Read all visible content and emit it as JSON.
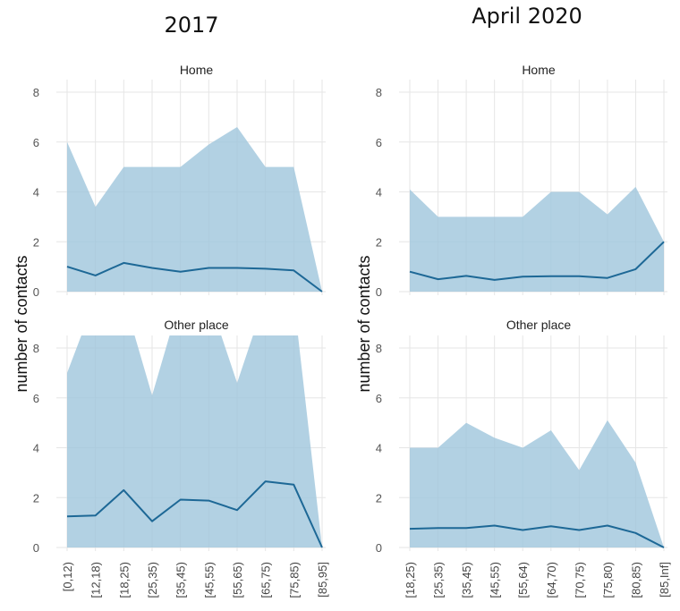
{
  "columns": [
    {
      "title": "2017"
    },
    {
      "title": "April 2020"
    }
  ],
  "ylabel": "number of contacts",
  "chart_data": [
    {
      "type": "area",
      "column_title": "2017",
      "title": "Home",
      "categories": [
        "[0,12)",
        "[12,18)",
        "[18,25)",
        "[25,35)",
        "[35,45)",
        "[45,55)",
        "[55,65)",
        "[65,75)",
        "[75,85)",
        "[85,95]"
      ],
      "series": [
        {
          "values": [
            1.0,
            0.65,
            1.15,
            0.95,
            0.8,
            0.95,
            0.95,
            0.92,
            0.85,
            0
          ]
        },
        {
          "values": [
            6.0,
            3.4,
            5.0,
            5.0,
            5.0,
            5.9,
            6.6,
            5.0,
            5.0,
            0
          ]
        }
      ],
      "ylim": [
        0,
        8
      ],
      "yticks": [
        0,
        2,
        4,
        6,
        8
      ],
      "grid": true
    },
    {
      "type": "area",
      "column_title": "April 2020",
      "title": "Home",
      "categories": [
        "[18,25)",
        "[25,35)",
        "[35,45)",
        "[45,55)",
        "[55,64)",
        "[64,70)",
        "[70,75)",
        "[75,80)",
        "[80,85)",
        "[85,Inf]"
      ],
      "series": [
        {
          "values": [
            0.8,
            0.5,
            0.63,
            0.47,
            0.6,
            0.62,
            0.62,
            0.55,
            0.9,
            2.0
          ]
        },
        {
          "values": [
            4.1,
            3.0,
            3.0,
            3.0,
            3.0,
            4.0,
            4.0,
            3.1,
            4.2,
            2.0
          ]
        }
      ],
      "ylim": [
        0,
        8
      ],
      "yticks": [
        0,
        2,
        4,
        6,
        8
      ],
      "grid": true
    },
    {
      "type": "area",
      "column_title": "2017",
      "title": "Other place",
      "categories": [
        "[0,12)",
        "[12,18)",
        "[18,25)",
        "[25,35)",
        "[35,45)",
        "[45,55)",
        "[55,65)",
        "[65,75)",
        "[75,85)",
        "[85,95]"
      ],
      "series": [
        {
          "values": [
            1.25,
            1.28,
            2.3,
            1.05,
            1.92,
            1.88,
            1.5,
            2.65,
            2.52,
            0
          ]
        },
        {
          "values": [
            7.0,
            10.0,
            10.0,
            6.1,
            10.0,
            10.0,
            6.6,
            10.0,
            10.0,
            0
          ]
        }
      ],
      "ylim": [
        0,
        8
      ],
      "yticks": [
        0,
        2,
        4,
        6,
        8
      ],
      "grid": true
    },
    {
      "type": "area",
      "column_title": "April 2020",
      "title": "Other place",
      "categories": [
        "[18,25)",
        "[25,35)",
        "[35,45)",
        "[45,55)",
        "[55,64)",
        "[64,70)",
        "[70,75)",
        "[75,80)",
        "[80,85)",
        "[85,Inf]"
      ],
      "series": [
        {
          "values": [
            0.75,
            0.78,
            0.78,
            0.88,
            0.7,
            0.85,
            0.7,
            0.88,
            0.58,
            0
          ]
        },
        {
          "values": [
            4.0,
            4.0,
            5.0,
            4.4,
            4.0,
            4.7,
            3.1,
            5.1,
            3.4,
            0
          ]
        }
      ],
      "ylim": [
        0,
        8
      ],
      "yticks": [
        0,
        2,
        4,
        6,
        8
      ],
      "grid": true
    }
  ]
}
